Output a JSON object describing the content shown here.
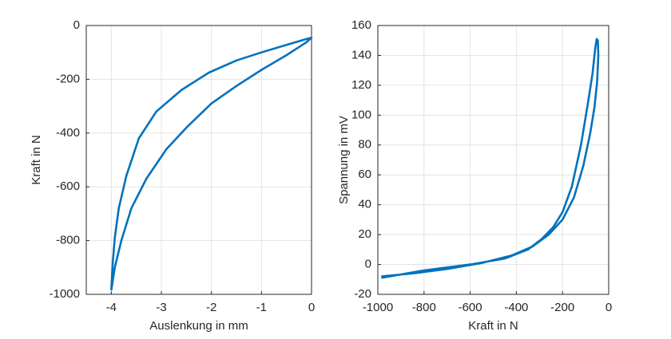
{
  "chart_data": [
    {
      "type": "line",
      "x_label": "Auslenkung in mm",
      "y_label": "Kraft in N",
      "xlim": [
        -4.5,
        0
      ],
      "ylim": [
        -1000,
        0
      ],
      "xticks": [
        -4,
        -3,
        -2,
        -1,
        0
      ],
      "yticks": [
        -1000,
        -800,
        -600,
        -400,
        -200,
        0
      ],
      "grid": true,
      "color": "#0072bd",
      "x": [
        -4,
        -3.97,
        -3.93,
        -3.85,
        -3.7,
        -3.45,
        -3.1,
        -2.6,
        -2.05,
        -1.5,
        -1.0,
        -0.5,
        -0.1,
        0,
        -0.1,
        -0.5,
        -1.0,
        -1.5,
        -2.0,
        -2.5,
        -2.9,
        -3.3,
        -3.6,
        -3.8,
        -3.93,
        -4
      ],
      "values": [
        -985,
        -880,
        -790,
        -680,
        -560,
        -420,
        -320,
        -240,
        -175,
        -130,
        -100,
        -72,
        -50,
        -45,
        -62,
        -110,
        -165,
        -225,
        -290,
        -380,
        -460,
        -570,
        -680,
        -800,
        -900,
        -985
      ]
    },
    {
      "type": "line",
      "x_label": "Kraft in N",
      "y_label": "Spannung in mV",
      "xlim": [
        -1000,
        0
      ],
      "ylim": [
        -20,
        160
      ],
      "xticks": [
        -1000,
        -800,
        -600,
        -400,
        -200,
        0
      ],
      "yticks": [
        -20,
        0,
        20,
        40,
        60,
        80,
        100,
        120,
        140,
        160
      ],
      "grid": true,
      "color": "#0072bd",
      "x": [
        -985,
        -800,
        -600,
        -450,
        -350,
        -290,
        -240,
        -200,
        -160,
        -120,
        -90,
        -70,
        -58,
        -52,
        -47,
        -45,
        -50,
        -62,
        -80,
        -110,
        -150,
        -200,
        -260,
        -330,
        -420,
        -550,
        -700,
        -850,
        -985
      ],
      "values": [
        -9,
        -4,
        0,
        4,
        10,
        17,
        25,
        35,
        52,
        80,
        108,
        128,
        145,
        151,
        150,
        140,
        122,
        105,
        88,
        66,
        45,
        30,
        20,
        12,
        6,
        1,
        -3,
        -6,
        -8
      ]
    }
  ]
}
